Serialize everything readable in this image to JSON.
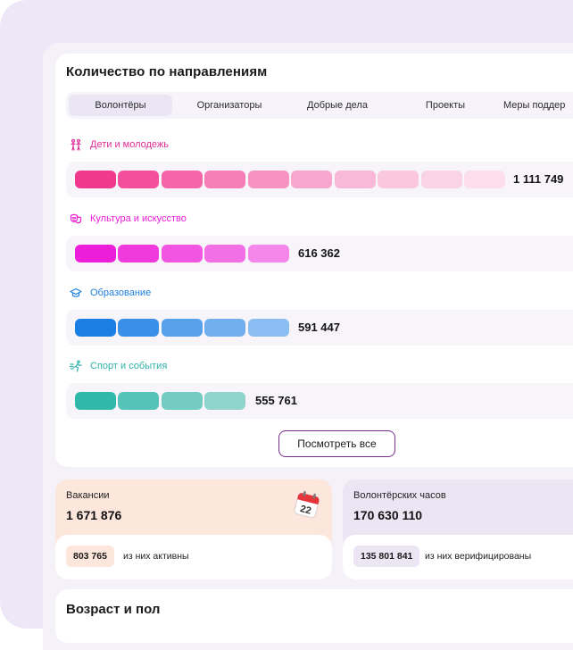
{
  "counts_card": {
    "title": "Количество по направлениям",
    "tabs": [
      {
        "label": "Волонтёры",
        "active": true
      },
      {
        "label": "Организаторы",
        "active": false
      },
      {
        "label": "Добрые дела",
        "active": false
      },
      {
        "label": "Проекты",
        "active": false
      },
      {
        "label": "Меры поддер",
        "active": false
      }
    ],
    "directions": [
      {
        "label": "Дети и молодежь",
        "icon": "children-icon",
        "value": "1 111 749",
        "segments": 10,
        "color": "#e02c96"
      },
      {
        "label": "Культура и искусство",
        "icon": "theater-masks-icon",
        "value": "616 362",
        "segments": 5,
        "color": "#e91ed6"
      },
      {
        "label": "Образование",
        "icon": "graduation-cap-icon",
        "value": "591 447",
        "segments": 5,
        "color": "#1f7fe0"
      },
      {
        "label": "Спорт и события",
        "icon": "running-person-icon",
        "value": "555 761",
        "segments": 4,
        "color": "#30b3a8"
      }
    ],
    "view_all_label": "Посмотреть все"
  },
  "vacancies": {
    "caption": "Вакансии",
    "value": "1 671 876",
    "chip_value": "803 765",
    "chip_note": "из них активны",
    "icon": "calendar-icon",
    "calendar_day": "22",
    "accent": "#fde6dc"
  },
  "hours": {
    "caption": "Волонтёрских часов",
    "value": "170 630 110",
    "chip_value": "135 801 841",
    "chip_note": "из них верифицированы",
    "accent": "#ece6f4"
  },
  "age_card": {
    "title": "Возраст и пол"
  }
}
